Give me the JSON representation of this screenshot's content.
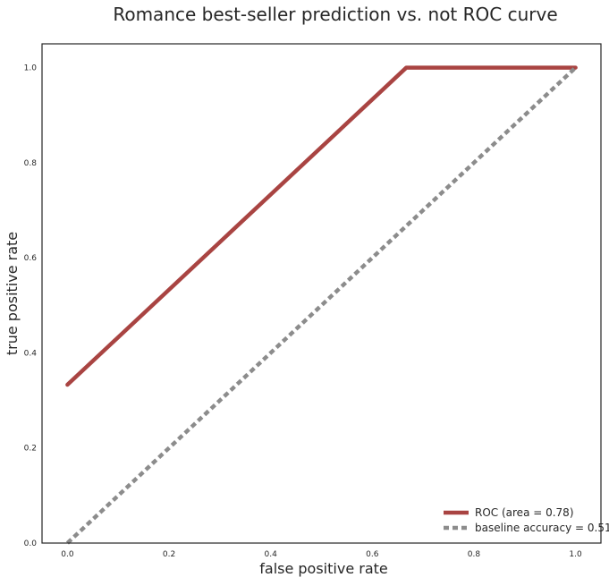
{
  "chart_data": {
    "type": "line",
    "title": "Romance best-seller prediction vs. not ROC curve",
    "xlabel": "false positive rate",
    "ylabel": "true positive rate",
    "xlim": [
      -0.05,
      1.05
    ],
    "ylim": [
      0.0,
      1.05
    ],
    "xticks": [
      "0.0",
      "0.2",
      "0.4",
      "0.6",
      "0.8",
      "1.0"
    ],
    "yticks": [
      "0.0",
      "0.2",
      "0.4",
      "0.6",
      "0.8",
      "1.0"
    ],
    "grid": false,
    "legend_position": "lower-right",
    "series": [
      {
        "name": "ROC (area = 0.78)",
        "color": "#a94442",
        "style": "solid",
        "x": [
          0.0,
          0.667,
          1.0
        ],
        "y": [
          0.333,
          1.0,
          1.0
        ]
      },
      {
        "name": "baseline accuracy = 0.51",
        "color": "#8c8c8c",
        "style": "dashed",
        "x": [
          0.0,
          1.0
        ],
        "y": [
          0.0,
          1.0
        ]
      }
    ]
  }
}
